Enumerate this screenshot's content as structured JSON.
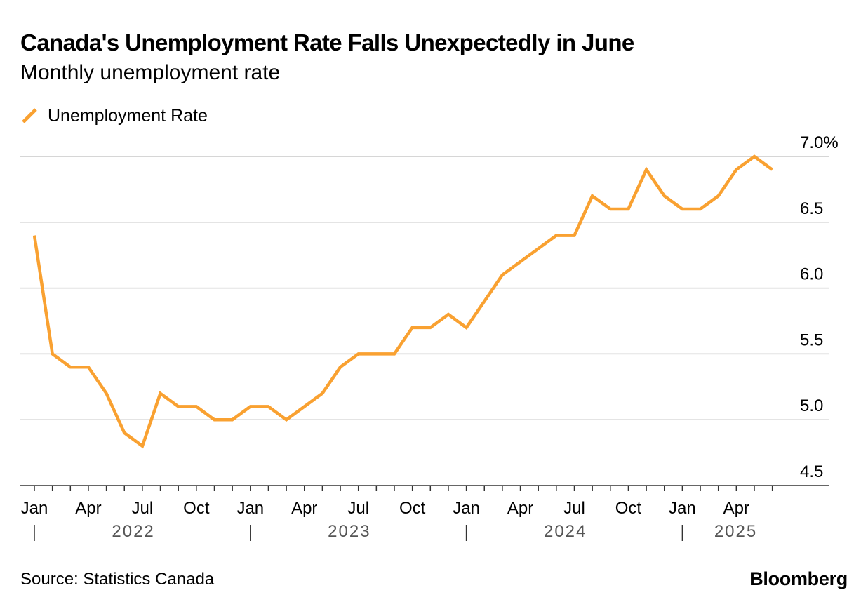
{
  "header": {
    "title": "Canada's Unemployment Rate Falls Unexpectedly in June",
    "subtitle": "Monthly unemployment rate"
  },
  "legend": {
    "label": "Unemployment Rate"
  },
  "footer": {
    "source": "Source: Statistics Canada",
    "brand": "Bloomberg"
  },
  "colors": {
    "series": "#F9A131",
    "grid": "#c8c8c8",
    "text": "#000000",
    "year_text": "#555555"
  },
  "chart_data": {
    "type": "line",
    "title": "Canada's Unemployment Rate Falls Unexpectedly in June",
    "subtitle": "Monthly unemployment rate",
    "xlabel": "",
    "ylabel": "",
    "ylim": [
      4.5,
      7.0
    ],
    "yticks": [
      {
        "value": 7.0,
        "label": "7.0%"
      },
      {
        "value": 6.5,
        "label": "6.5"
      },
      {
        "value": 6.0,
        "label": "6.0"
      },
      {
        "value": 5.5,
        "label": "5.5"
      },
      {
        "value": 5.0,
        "label": "5.0"
      },
      {
        "value": 4.5,
        "label": "4.5"
      }
    ],
    "grid": true,
    "legend_position": "top-left",
    "month_ticks": [
      {
        "index": 0,
        "label": "Jan"
      },
      {
        "index": 3,
        "label": "Apr"
      },
      {
        "index": 6,
        "label": "Jul"
      },
      {
        "index": 9,
        "label": "Oct"
      },
      {
        "index": 12,
        "label": "Jan"
      },
      {
        "index": 15,
        "label": "Apr"
      },
      {
        "index": 18,
        "label": "Jul"
      },
      {
        "index": 21,
        "label": "Oct"
      },
      {
        "index": 24,
        "label": "Jan"
      },
      {
        "index": 27,
        "label": "Apr"
      },
      {
        "index": 30,
        "label": "Jul"
      },
      {
        "index": 33,
        "label": "Oct"
      },
      {
        "index": 36,
        "label": "Jan"
      },
      {
        "index": 39,
        "label": "Apr"
      }
    ],
    "year_ticks": [
      {
        "start_index": 0,
        "label": "2022"
      },
      {
        "start_index": 12,
        "label": "2023"
      },
      {
        "start_index": 24,
        "label": "2024"
      },
      {
        "start_index": 36,
        "label": "2025"
      }
    ],
    "series": [
      {
        "name": "Unemployment Rate",
        "x": [
          "2022-01",
          "2022-02",
          "2022-03",
          "2022-04",
          "2022-05",
          "2022-06",
          "2022-07",
          "2022-08",
          "2022-09",
          "2022-10",
          "2022-11",
          "2022-12",
          "2023-01",
          "2023-02",
          "2023-03",
          "2023-04",
          "2023-05",
          "2023-06",
          "2023-07",
          "2023-08",
          "2023-09",
          "2023-10",
          "2023-11",
          "2023-12",
          "2024-01",
          "2024-02",
          "2024-03",
          "2024-04",
          "2024-05",
          "2024-06",
          "2024-07",
          "2024-08",
          "2024-09",
          "2024-10",
          "2024-11",
          "2024-12",
          "2025-01",
          "2025-02",
          "2025-03",
          "2025-04",
          "2025-05",
          "2025-06"
        ],
        "values": [
          6.4,
          5.5,
          5.4,
          5.4,
          5.2,
          4.9,
          4.8,
          5.2,
          5.1,
          5.1,
          5.0,
          5.0,
          5.1,
          5.1,
          5.0,
          5.1,
          5.2,
          5.4,
          5.5,
          5.5,
          5.5,
          5.7,
          5.7,
          5.8,
          5.7,
          5.9,
          6.1,
          6.2,
          6.3,
          6.4,
          6.4,
          6.7,
          6.6,
          6.6,
          6.9,
          6.7,
          6.6,
          6.6,
          6.7,
          6.9,
          7.0,
          6.9
        ]
      }
    ]
  }
}
